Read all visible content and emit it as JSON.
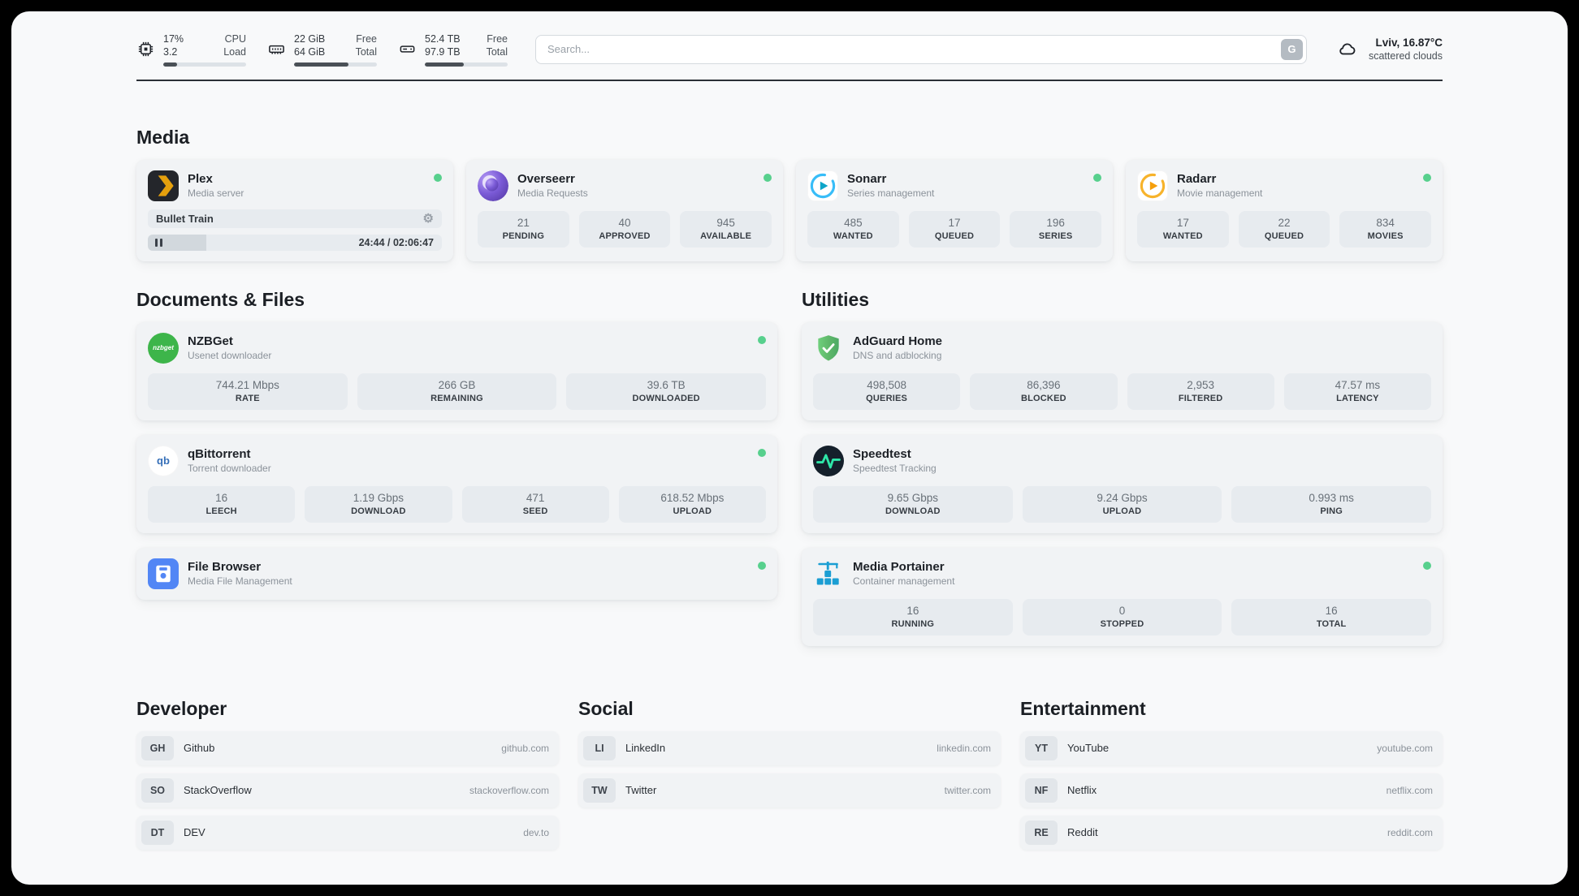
{
  "header": {
    "cpu": {
      "values": [
        "17%",
        "3.2"
      ],
      "labels": [
        "CPU",
        "Load"
      ],
      "percent": 17
    },
    "ram": {
      "values": [
        "22 GiB",
        "64 GiB"
      ],
      "labels": [
        "Free",
        "Total"
      ],
      "percent": 66
    },
    "disk": {
      "values": [
        "52.4 TB",
        "97.9 TB"
      ],
      "labels": [
        "Free",
        "Total"
      ],
      "percent": 47
    },
    "search": {
      "placeholder": "Search...",
      "button": "G"
    },
    "weather": {
      "location": "Lviv, 16.87°C",
      "condition": "scattered clouds"
    }
  },
  "sections": {
    "media": "Media",
    "documents": "Documents & Files",
    "utilities": "Utilities",
    "developer": "Developer",
    "social": "Social",
    "entertainment": "Entertainment"
  },
  "services": {
    "plex": {
      "name": "Plex",
      "desc": "Media server",
      "now_playing": "Bullet Train",
      "time": "24:44 / 02:06:47",
      "progress_percent": 20
    },
    "overseerr": {
      "name": "Overseerr",
      "desc": "Media Requests",
      "stats": [
        {
          "value": "21",
          "label": "PENDING"
        },
        {
          "value": "40",
          "label": "APPROVED"
        },
        {
          "value": "945",
          "label": "AVAILABLE"
        }
      ]
    },
    "sonarr": {
      "name": "Sonarr",
      "desc": "Series management",
      "stats": [
        {
          "value": "485",
          "label": "WANTED"
        },
        {
          "value": "17",
          "label": "QUEUED"
        },
        {
          "value": "196",
          "label": "SERIES"
        }
      ]
    },
    "radarr": {
      "name": "Radarr",
      "desc": "Movie management",
      "stats": [
        {
          "value": "17",
          "label": "WANTED"
        },
        {
          "value": "22",
          "label": "QUEUED"
        },
        {
          "value": "834",
          "label": "MOVIES"
        }
      ]
    },
    "nzbget": {
      "name": "NZBGet",
      "desc": "Usenet downloader",
      "stats": [
        {
          "value": "744.21 Mbps",
          "label": "RATE"
        },
        {
          "value": "266 GB",
          "label": "REMAINING"
        },
        {
          "value": "39.6 TB",
          "label": "DOWNLOADED"
        }
      ]
    },
    "qbittorrent": {
      "name": "qBittorrent",
      "desc": "Torrent downloader",
      "stats": [
        {
          "value": "16",
          "label": "LEECH"
        },
        {
          "value": "1.19 Gbps",
          "label": "DOWNLOAD"
        },
        {
          "value": "471",
          "label": "SEED"
        },
        {
          "value": "618.52 Mbps",
          "label": "UPLOAD"
        }
      ]
    },
    "filebrowser": {
      "name": "File Browser",
      "desc": "Media File Management"
    },
    "adguard": {
      "name": "AdGuard Home",
      "desc": "DNS and adblocking",
      "stats": [
        {
          "value": "498,508",
          "label": "QUERIES"
        },
        {
          "value": "86,396",
          "label": "BLOCKED"
        },
        {
          "value": "2,953",
          "label": "FILTERED"
        },
        {
          "value": "47.57 ms",
          "label": "LATENCY"
        }
      ]
    },
    "speedtest": {
      "name": "Speedtest",
      "desc": "Speedtest Tracking",
      "stats": [
        {
          "value": "9.65 Gbps",
          "label": "DOWNLOAD"
        },
        {
          "value": "9.24 Gbps",
          "label": "UPLOAD"
        },
        {
          "value": "0.993 ms",
          "label": "PING"
        }
      ]
    },
    "portainer": {
      "name": "Media Portainer",
      "desc": "Container management",
      "stats": [
        {
          "value": "16",
          "label": "RUNNING"
        },
        {
          "value": "0",
          "label": "STOPPED"
        },
        {
          "value": "16",
          "label": "TOTAL"
        }
      ]
    }
  },
  "icon_text": {
    "nzbget": "nzbget",
    "qbittorrent": "qb"
  },
  "bookmarks": {
    "developer": [
      {
        "abbr": "GH",
        "name": "Github",
        "url": "github.com"
      },
      {
        "abbr": "SO",
        "name": "StackOverflow",
        "url": "stackoverflow.com"
      },
      {
        "abbr": "DT",
        "name": "DEV",
        "url": "dev.to"
      }
    ],
    "social": [
      {
        "abbr": "LI",
        "name": "LinkedIn",
        "url": "linkedin.com"
      },
      {
        "abbr": "TW",
        "name": "Twitter",
        "url": "twitter.com"
      }
    ],
    "entertainment": [
      {
        "abbr": "YT",
        "name": "YouTube",
        "url": "youtube.com"
      },
      {
        "abbr": "NF",
        "name": "Netflix",
        "url": "netflix.com"
      },
      {
        "abbr": "RE",
        "name": "Reddit",
        "url": "reddit.com"
      }
    ]
  },
  "colors": {
    "status_online": "#57d08d",
    "page_background": "#f8f9fa",
    "card_background": "#f1f3f5",
    "stat_background": "#e7ebef",
    "search_button": "#b4bbc2",
    "plex_gold": "#e5a00d",
    "overseerr_purple": "#7a5ad6",
    "sonarr_blue": "#38bdf8",
    "radarr_amber": "#f59f0b",
    "nzbget_green": "#3db54a",
    "qbittorrent_blue": "#356fb8",
    "filebrowser_blue": "#5286f5",
    "adguard_green": "#5fb86a",
    "speedtest_green": "#2ee6a8",
    "portainer_blue": "#1b9ed3"
  }
}
